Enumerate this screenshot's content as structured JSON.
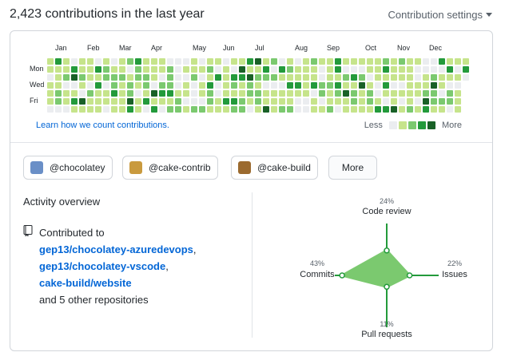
{
  "header": {
    "title": "2,423 contributions in the last year",
    "settings_label": "Contribution settings"
  },
  "calendar": {
    "months": [
      "Jan",
      "Feb",
      "Mar",
      "Apr",
      "May",
      "Jun",
      "Jul",
      "Aug",
      "Sep",
      "Oct",
      "Nov",
      "Dec"
    ],
    "days": [
      "Mon",
      "Wed",
      "Fri"
    ],
    "colors": [
      "#ebedf0",
      "#c6e48b",
      "#7bc96f",
      "#239a3b",
      "#196127"
    ],
    "learn_link": "Learn how we count contributions.",
    "legend_less": "Less",
    "legend_more": "More"
  },
  "orgs": [
    {
      "label": "@chocolatey",
      "avatar_color": "#6a8fc7"
    },
    {
      "label": "@cake-contrib",
      "avatar_color": "#c99a3e"
    },
    {
      "label": "@cake-build",
      "avatar_color": "#9b6a2f"
    }
  ],
  "more_button": "More",
  "activity": {
    "title": "Activity overview",
    "contributed_to": "Contributed to",
    "repos": [
      "gep13/chocolatey-azuredevops",
      "gep13/chocolatey-vscode",
      "cake-build/website"
    ],
    "others": "and 5 other repositories",
    "repo_icon": "repo-icon"
  },
  "chart_data": {
    "type": "radar",
    "axes": [
      {
        "label": "Code review",
        "percent": 24,
        "percent_label": "24%"
      },
      {
        "label": "Issues",
        "percent": 22,
        "percent_label": "22%"
      },
      {
        "label": "Pull requests",
        "percent": 11,
        "percent_label": "11%"
      },
      {
        "label": "Commits",
        "percent": 43,
        "percent_label": "43%"
      }
    ],
    "fill_color": "#7bc96f",
    "axis_color": "#239a3b"
  }
}
